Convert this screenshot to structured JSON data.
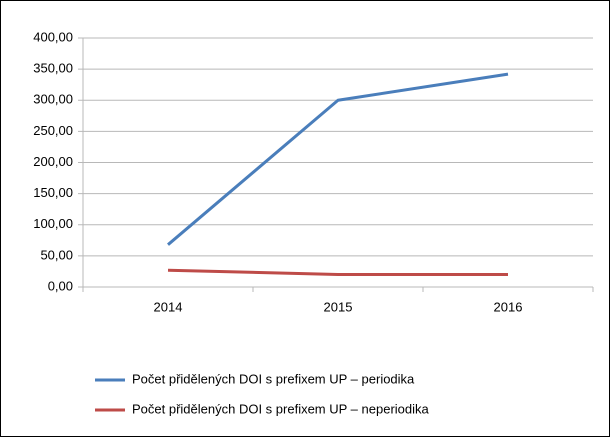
{
  "chart_data": {
    "type": "line",
    "categories": [
      "2014",
      "2015",
      "2016"
    ],
    "series": [
      {
        "name": "Počet přidělených DOI s prefixem UP – periodika",
        "color": "#4a7ebb",
        "values": [
          68,
          300,
          342
        ]
      },
      {
        "name": "Počet přidělených DOI s prefixem UP – neperiodika",
        "color": "#be4b48",
        "values": [
          27,
          20,
          20
        ]
      }
    ],
    "ylim": [
      0,
      400
    ],
    "yticks": [
      {
        "value": 0,
        "label": "0,00"
      },
      {
        "value": 50,
        "label": "50,00"
      },
      {
        "value": 100,
        "label": "100,00"
      },
      {
        "value": 150,
        "label": "150,00"
      },
      {
        "value": 200,
        "label": "200,00"
      },
      {
        "value": 250,
        "label": "250,00"
      },
      {
        "value": 300,
        "label": "300,00"
      },
      {
        "value": 350,
        "label": "350,00"
      },
      {
        "value": 400,
        "label": "400,00"
      }
    ],
    "grid": true,
    "legend": "bottom"
  }
}
